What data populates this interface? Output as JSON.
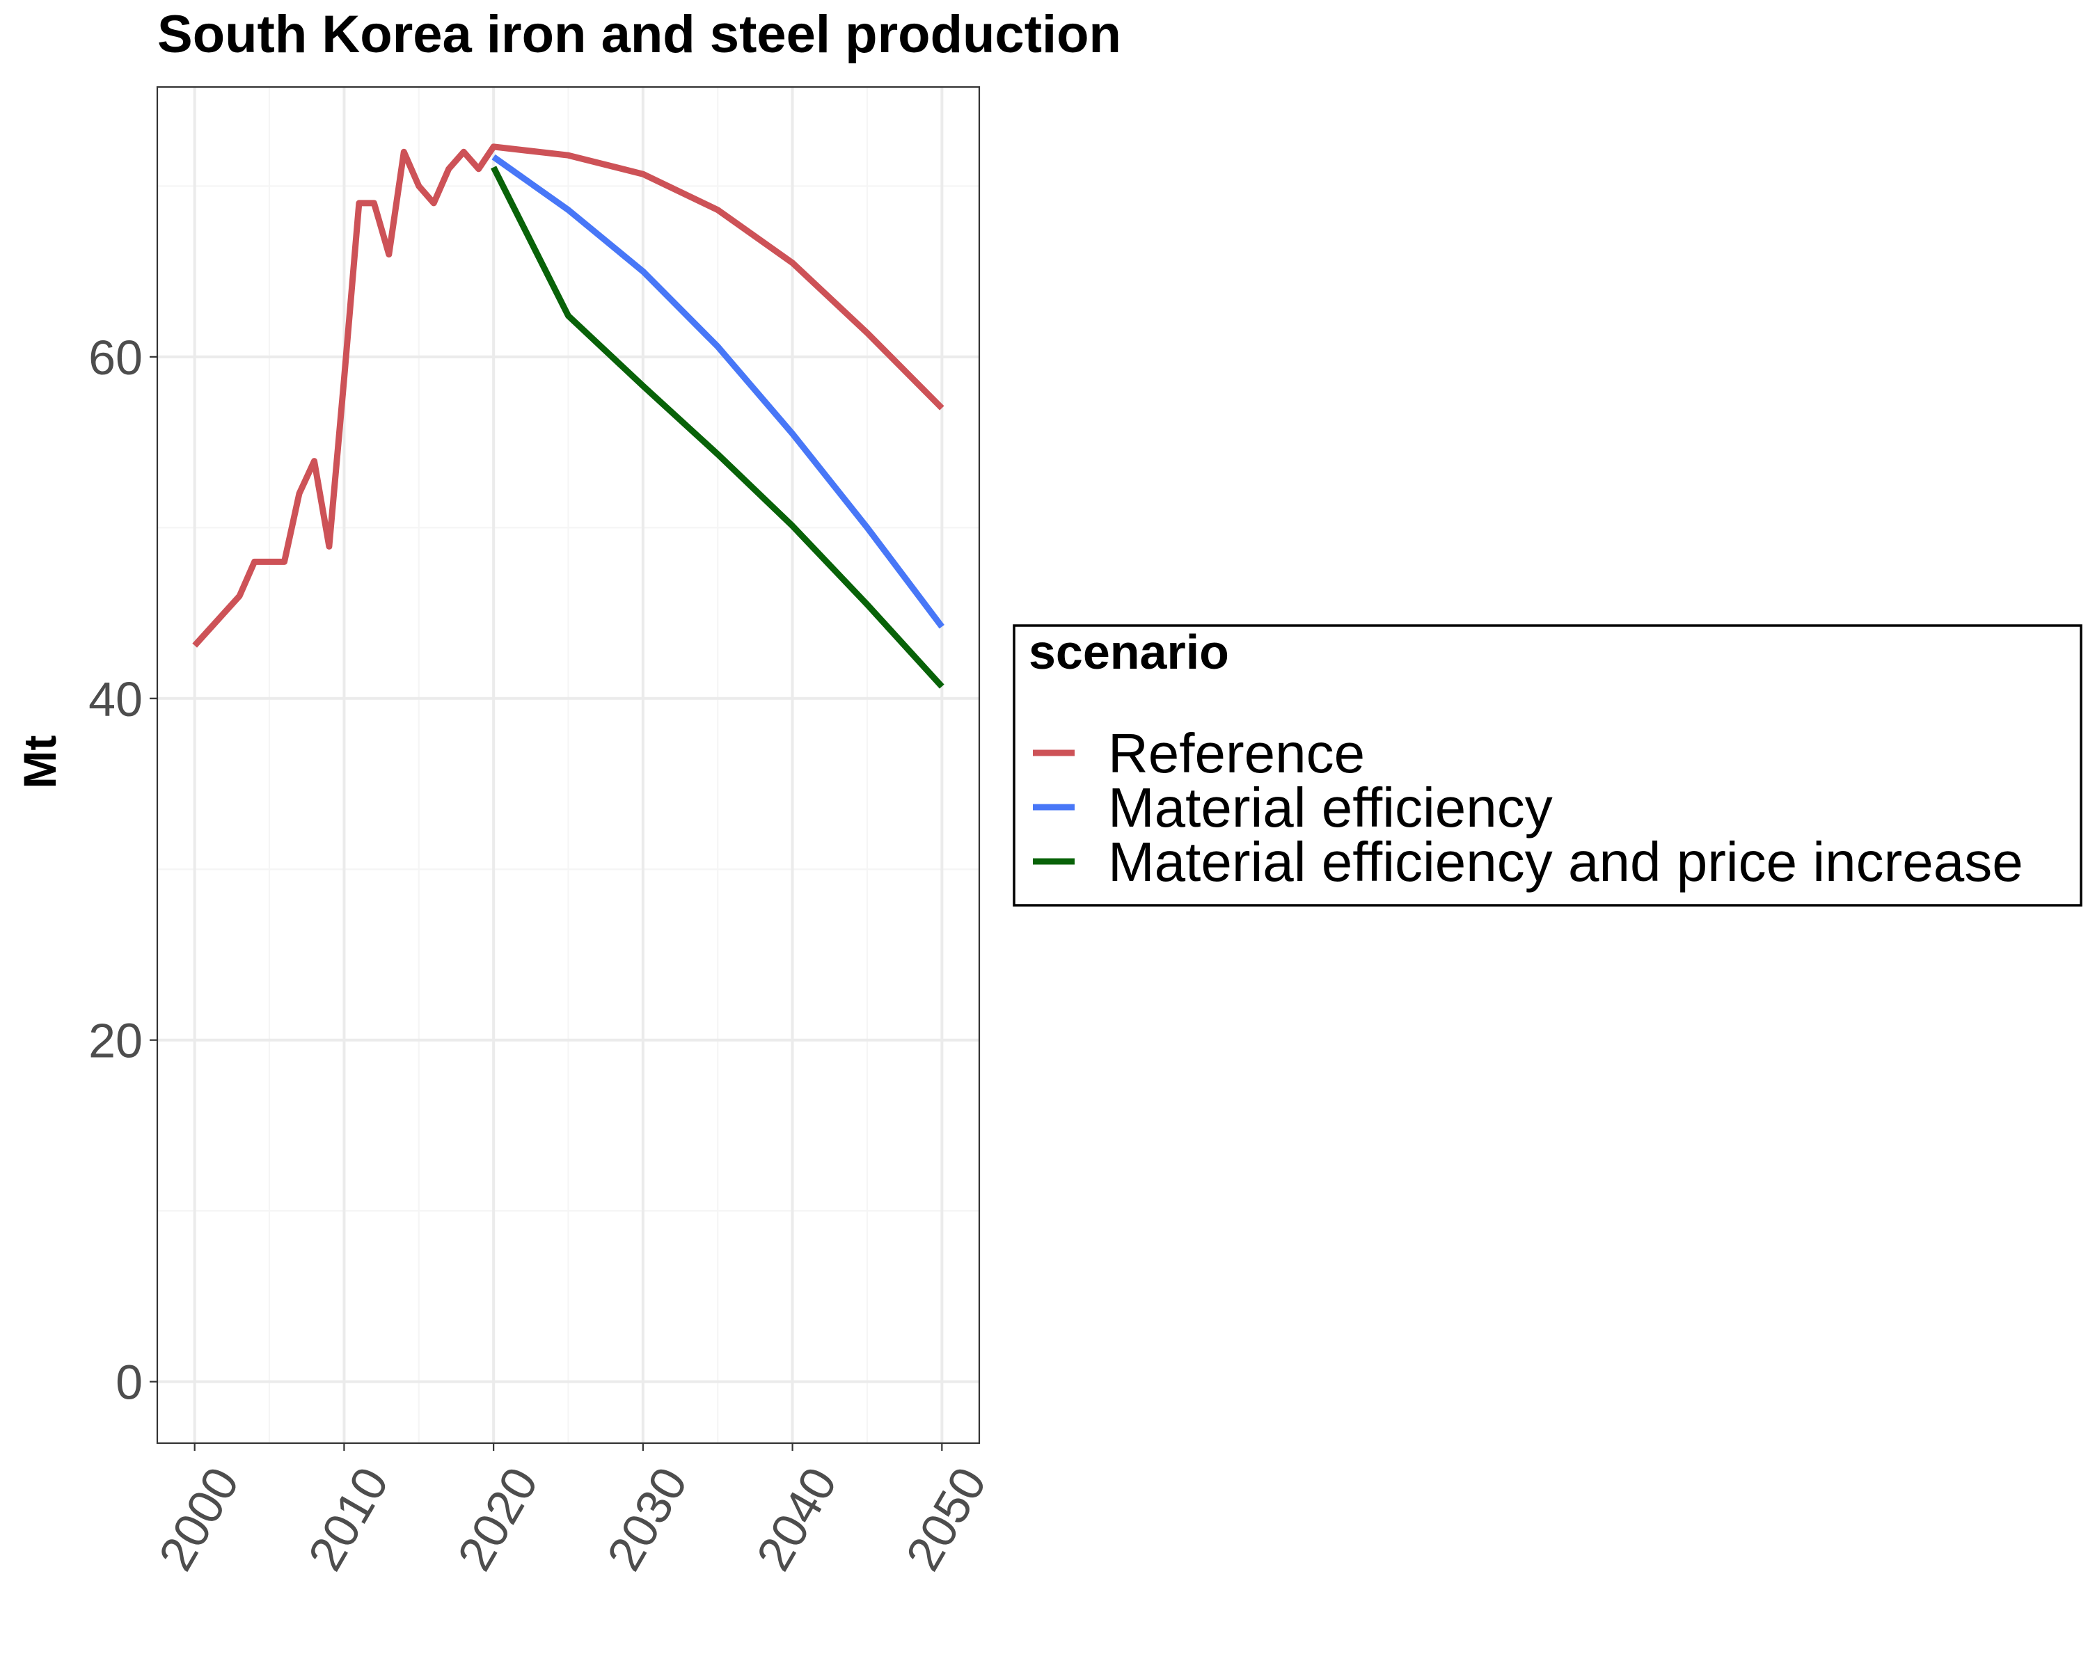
{
  "chart_data": {
    "type": "line",
    "title": "South Korea  iron and steel production",
    "xlabel": "",
    "ylabel": "Mt",
    "xlim": [
      1997.5,
      2052.5
    ],
    "ylim": [
      -3.6,
      75.8
    ],
    "x_ticks": [
      2000,
      2010,
      2020,
      2030,
      2040,
      2050
    ],
    "x_tick_labels": [
      "2000",
      "2010",
      "2020",
      "2030",
      "2040",
      "2050"
    ],
    "y_ticks": [
      0,
      20,
      40,
      60
    ],
    "y_tick_labels": [
      "0",
      "20",
      "40",
      "60"
    ],
    "grid": true,
    "legend": {
      "title": "scenario",
      "position": "right"
    },
    "series": [
      {
        "name": "Reference",
        "color": "#cd5257",
        "points": [
          [
            2000,
            43.1
          ],
          [
            2003,
            46.0
          ],
          [
            2004,
            48.0
          ],
          [
            2005,
            48.0
          ],
          [
            2006,
            48.0
          ],
          [
            2007,
            52.0
          ],
          [
            2008,
            53.9
          ],
          [
            2009,
            48.9
          ],
          [
            2010,
            58.7
          ],
          [
            2011,
            69.0
          ],
          [
            2012,
            69.0
          ],
          [
            2013,
            66.0
          ],
          [
            2014,
            72.0
          ],
          [
            2015,
            70.0
          ],
          [
            2016,
            69.0
          ],
          [
            2017,
            71.0
          ],
          [
            2018,
            72.0
          ],
          [
            2019,
            71.0
          ],
          [
            2020,
            72.3
          ],
          [
            2025,
            71.8
          ],
          [
            2030,
            70.7
          ],
          [
            2035,
            68.6
          ],
          [
            2040,
            65.5
          ],
          [
            2045,
            61.4
          ],
          [
            2050,
            57.0
          ]
        ]
      },
      {
        "name": "Material efficiency",
        "color": "#4877f7",
        "points": [
          [
            2020,
            71.7
          ],
          [
            2025,
            68.6
          ],
          [
            2030,
            65.0
          ],
          [
            2035,
            60.6
          ],
          [
            2040,
            55.5
          ],
          [
            2045,
            50.0
          ],
          [
            2050,
            44.2
          ]
        ]
      },
      {
        "name": "Material efficiency and price increase",
        "color": "#086208",
        "points": [
          [
            2020,
            71.1
          ],
          [
            2025,
            62.4
          ],
          [
            2030,
            58.3
          ],
          [
            2035,
            54.3
          ],
          [
            2040,
            50.1
          ],
          [
            2045,
            45.5
          ],
          [
            2050,
            40.7
          ]
        ]
      }
    ]
  }
}
